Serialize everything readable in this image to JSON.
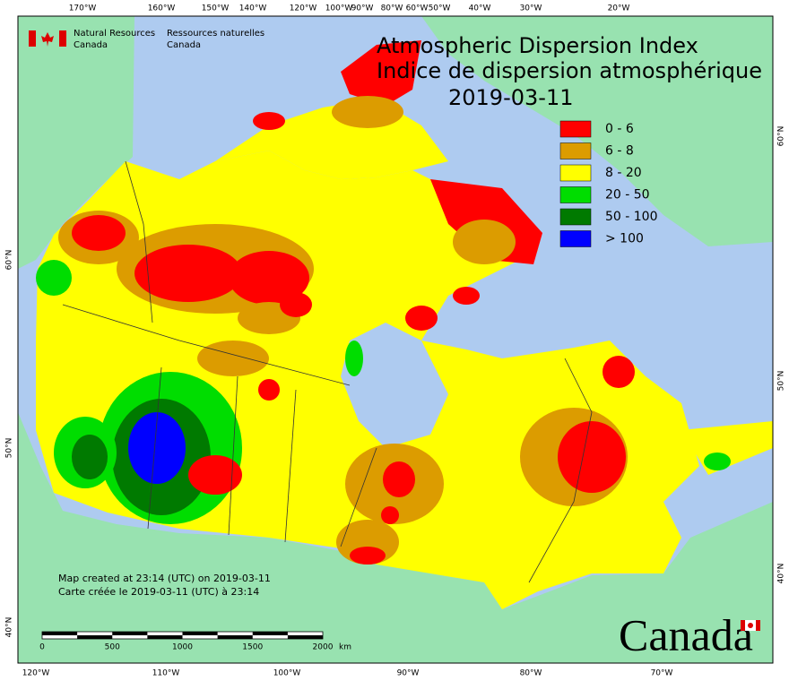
{
  "header": {
    "org_en": [
      "Natural Resources",
      "Canada"
    ],
    "org_fr": [
      "Ressources naturelles",
      "Canada"
    ]
  },
  "title": {
    "line1": "Atmospheric Dispersion Index",
    "line2": "Indice de dispersion atmosphérique",
    "date": "2019-03-11"
  },
  "legend": [
    {
      "label": "0 - 6",
      "color": "#ff0000"
    },
    {
      "label": "6 - 8",
      "color": "#dc9c00"
    },
    {
      "label": "8 - 20",
      "color": "#ffff00"
    },
    {
      "label": "20 - 50",
      "color": "#00dd00"
    },
    {
      "label": "50 - 100",
      "color": "#007a00"
    },
    {
      "label": "> 100",
      "color": "#0000ff"
    }
  ],
  "top_labels": [
    "170°W",
    "160°W",
    "150°W",
    "140°W",
    "120°W",
    "100°W",
    "90°W",
    "80°W",
    "60°W",
    "50°W",
    "40°W",
    "30°W",
    "20°W"
  ],
  "bottom_labels": [
    "120°W",
    "110°W",
    "100°W",
    "90°W",
    "80°W",
    "70°W"
  ],
  "left_labels": [
    "60°N",
    "50°N",
    "40°N"
  ],
  "right_labels": [
    "60°N",
    "50°N",
    "40°N"
  ],
  "credits": [
    "Map created at 23:14 (UTC) on 2019-03-11",
    "Carte créée le 2019-03-11 (UTC) à 23:14"
  ],
  "scale": {
    "labels": [
      "0",
      "500",
      "1000",
      "1500",
      "2000"
    ],
    "unit": "km"
  },
  "wordmark": "Canada"
}
